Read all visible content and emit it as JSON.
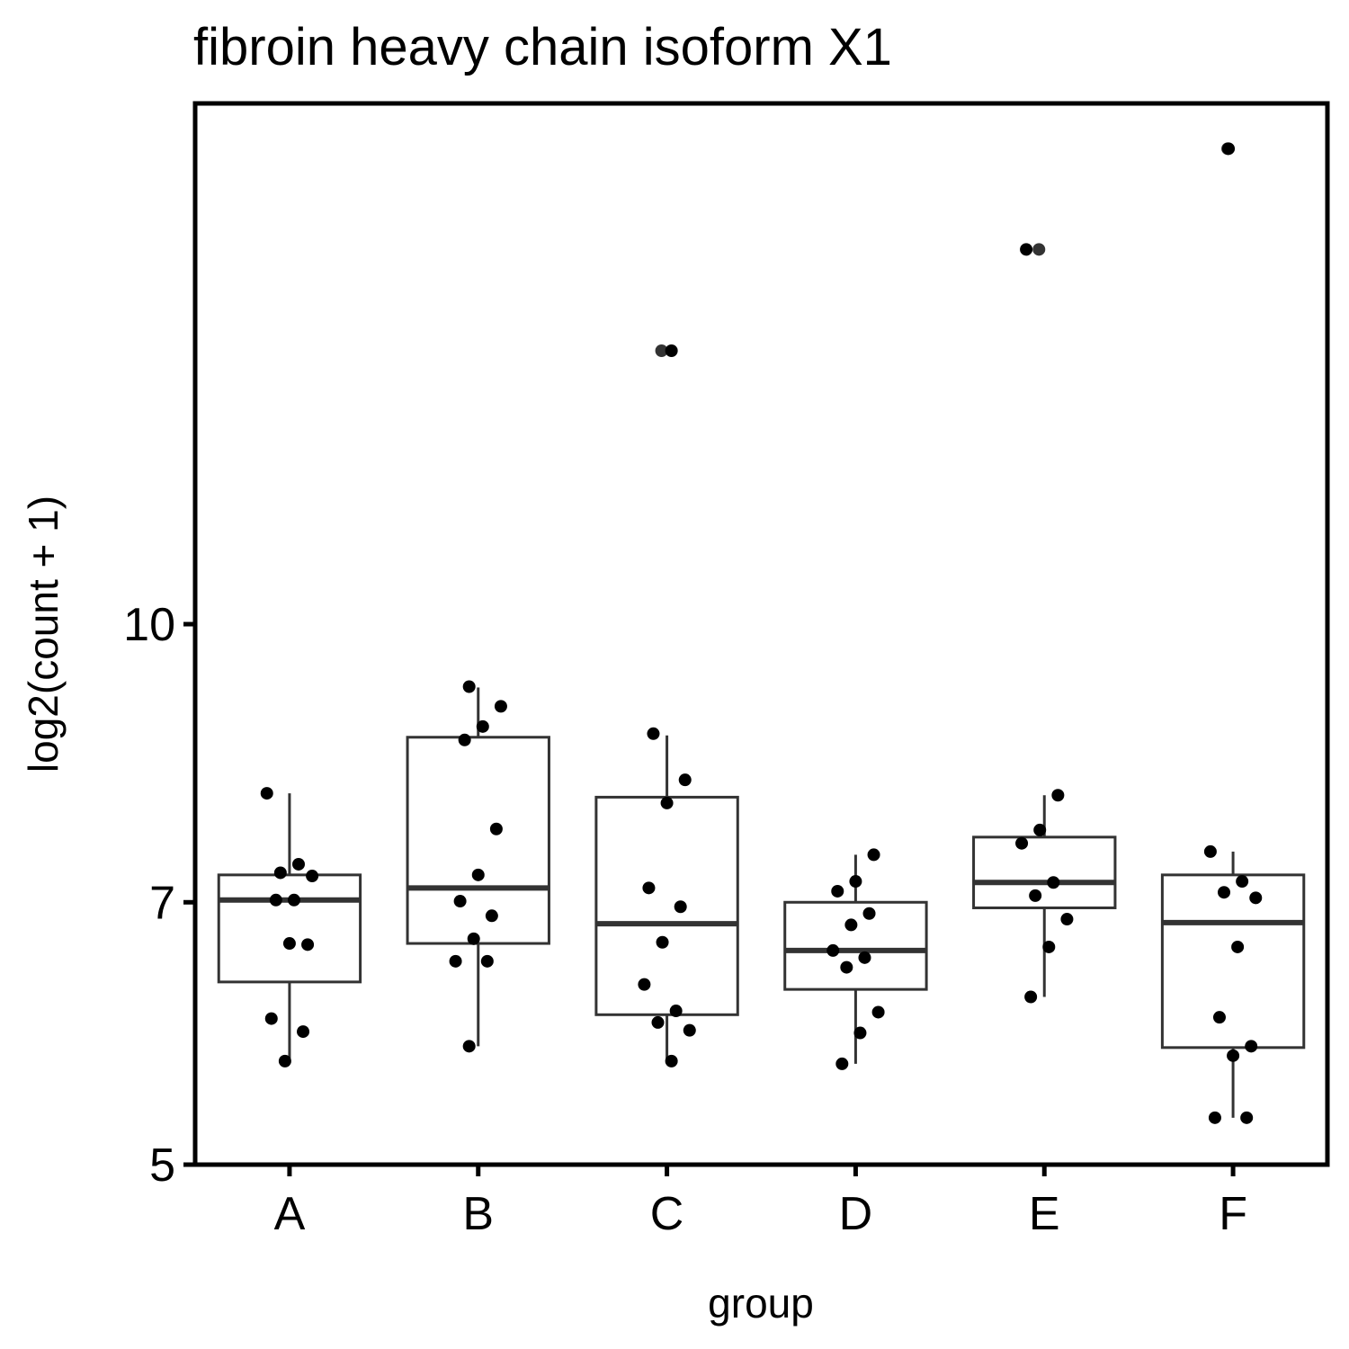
{
  "chart_data": {
    "type": "box",
    "title": "fibroin heavy chain isoform X1",
    "xlabel": "group",
    "ylabel": "log2(count + 1)",
    "categories": [
      "A",
      "B",
      "C",
      "D",
      "E",
      "F"
    ],
    "ylim": [
      5,
      19.5
    ],
    "yticks": [
      5,
      7,
      10
    ],
    "log_scale": true,
    "grid": false,
    "box_color": "#333333",
    "point_color": "#000000",
    "outlier_color": "#333333",
    "boxes": [
      {
        "whislo": 5.71,
        "q1": 6.32,
        "med": 7.02,
        "q3": 7.25,
        "whishi": 8.05,
        "outliers": []
      },
      {
        "whislo": 5.82,
        "q1": 6.64,
        "med": 7.13,
        "q3": 8.65,
        "whishi": 9.22,
        "outliers": []
      },
      {
        "whislo": 5.71,
        "q1": 6.06,
        "med": 6.81,
        "q3": 8.01,
        "whishi": 8.67,
        "outliers": [
          14.2
        ]
      },
      {
        "whislo": 5.69,
        "q1": 6.26,
        "med": 6.58,
        "q3": 7.0,
        "whishi": 7.44,
        "outliers": []
      },
      {
        "whislo": 6.2,
        "q1": 6.95,
        "med": 7.18,
        "q3": 7.61,
        "whishi": 8.03,
        "outliers": [
          16.17
        ]
      },
      {
        "whislo": 5.31,
        "q1": 5.81,
        "med": 6.82,
        "q3": 7.25,
        "whishi": 7.47,
        "outliers": [
          18.4
        ]
      }
    ],
    "points": [
      [
        8.05,
        7.35,
        7.27,
        7.24,
        7.02,
        7.02,
        6.63,
        6.64,
        6.03,
        5.93,
        5.71
      ],
      [
        9.23,
        9.0,
        8.77,
        8.62,
        7.69,
        7.25,
        7.01,
        6.88,
        6.68,
        6.49,
        6.49,
        5.82
      ],
      [
        14.2,
        8.69,
        8.19,
        7.95,
        7.13,
        6.96,
        6.65,
        6.3,
        6.09,
        6.0,
        5.94,
        5.71
      ],
      [
        7.44,
        7.19,
        7.1,
        6.9,
        6.8,
        6.58,
        6.52,
        6.44,
        6.08,
        5.92,
        5.69
      ],
      [
        16.17,
        8.03,
        7.68,
        7.55,
        7.18,
        7.06,
        6.85,
        6.61,
        6.2
      ],
      [
        18.4,
        7.47,
        7.19,
        7.09,
        7.04,
        6.61,
        6.04,
        5.82,
        5.75,
        5.31,
        5.31
      ]
    ]
  }
}
